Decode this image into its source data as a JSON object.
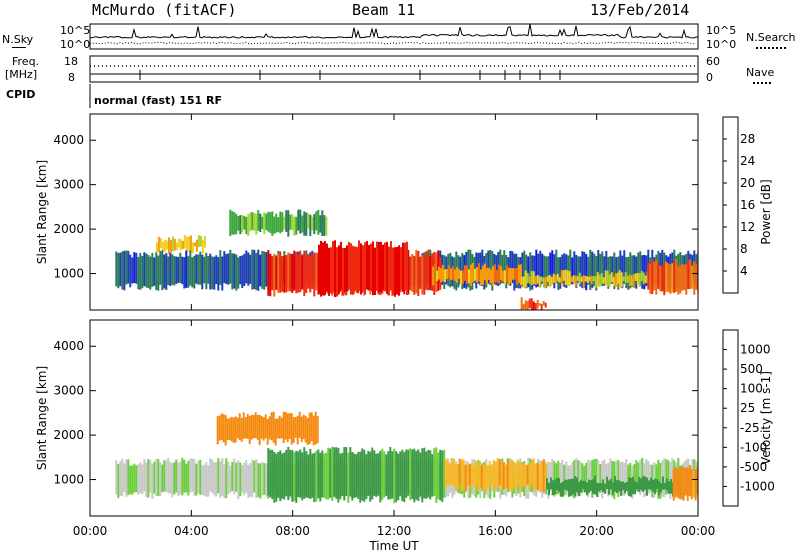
{
  "header": {
    "station": "McMurdo (fitACF)",
    "beam": "Beam 11",
    "date": "13/Feb/2014"
  },
  "strip": {
    "nsky_label": "N.Sky",
    "nsearch_label": "N.Search",
    "noise_top_left": "10^5",
    "noise_bottom_left": "10^0",
    "noise_top_right": "10^5",
    "noise_bottom_right": "10^0",
    "freq_label": "Freq.",
    "freq_unit": "[MHz]",
    "freq_top": "18",
    "freq_bottom": "8",
    "nave_top": "60",
    "nave_bottom": "0",
    "nave_label": "Nave",
    "cpid_label": "CPID",
    "cpid_value": "normal (fast) 151 RF"
  },
  "colors": {
    "power_scale": [
      "#1616f0",
      "#1e3fb4",
      "#2a7a5a",
      "#3ca83c",
      "#a6d430",
      "#f0d020",
      "#f59a0c",
      "#f06a10",
      "#f02a10",
      "#e80000"
    ],
    "velocity_scale": [
      "#e80000",
      "#f25000",
      "#f58a10",
      "#f8b828",
      "#c8c8c8",
      "#c8c8c8",
      "#6ccf3c",
      "#3c9a46",
      "#2a6f7a",
      "#1e3fb4"
    ]
  },
  "chart_data": [
    {
      "type": "heatmap",
      "title": "Power",
      "xlabel": "Time UT",
      "ylabel": "Slant Range [km]",
      "colorbar_label": "Power [dB]",
      "x_ticks": [
        "00:00",
        "04:00",
        "08:00",
        "12:00",
        "16:00",
        "20:00",
        "00:00"
      ],
      "y_ticks": [
        "1000",
        "2000",
        "3000",
        "4000"
      ],
      "colorbar_ticks": [
        "4",
        "8",
        "12",
        "16",
        "20",
        "24",
        "28"
      ],
      "xlim": [
        0,
        24
      ],
      "ylim": [
        180,
        4590
      ],
      "clim": [
        0,
        32
      ],
      "bands": [
        {
          "t0": 5.5,
          "t1": 9.3,
          "r0": 1920,
          "r1": 2350,
          "value": 11
        },
        {
          "t0": 2.6,
          "t1": 4.5,
          "r0": 1530,
          "r1": 1780,
          "value": 18
        },
        {
          "t0": 1.0,
          "t1": 24.0,
          "r0": 700,
          "r1": 1450,
          "value": 6
        },
        {
          "t0": 7.0,
          "t1": 13.8,
          "r0": 570,
          "r1": 1450,
          "value": 27
        },
        {
          "t0": 9.0,
          "t1": 12.5,
          "r0": 560,
          "r1": 1660,
          "value": 29
        },
        {
          "t0": 13.5,
          "t1": 17.0,
          "r0": 800,
          "r1": 1150,
          "value": 21
        },
        {
          "t0": 17.0,
          "t1": 22.0,
          "r0": 750,
          "r1": 1000,
          "value": 17
        },
        {
          "t0": 22.0,
          "t1": 24.0,
          "r0": 600,
          "r1": 1250,
          "value": 24
        },
        {
          "t0": 17.0,
          "t1": 18.0,
          "r0": 200,
          "r1": 380,
          "value": 27
        }
      ]
    },
    {
      "type": "heatmap",
      "title": "Velocity",
      "xlabel": "Time UT",
      "ylabel": "Slant Range [km]",
      "colorbar_label": "Velocity [m s-1]",
      "x_ticks": [
        "00:00",
        "04:00",
        "08:00",
        "12:00",
        "16:00",
        "20:00",
        "00:00"
      ],
      "y_ticks": [
        "1000",
        "2000",
        "3000",
        "4000"
      ],
      "colorbar_ticks": [
        "-1000",
        "-500",
        "-100",
        "-25",
        "25",
        "100",
        "500",
        "1000"
      ],
      "xlim": [
        0,
        24
      ],
      "ylim": [
        180,
        4590
      ],
      "bands": [
        {
          "t0": 5.0,
          "t1": 9.0,
          "r0": 1850,
          "r1": 2450,
          "value": -200
        },
        {
          "t0": 1.0,
          "t1": 24.0,
          "r0": 650,
          "r1": 1400,
          "value": 20
        },
        {
          "t0": 7.0,
          "t1": 14.0,
          "r0": 550,
          "r1": 1650,
          "value": 150
        },
        {
          "t0": 14.0,
          "t1": 18.0,
          "r0": 800,
          "r1": 1400,
          "value": -80
        },
        {
          "t0": 18.0,
          "t1": 23.0,
          "r0": 700,
          "r1": 1000,
          "value": 300
        },
        {
          "t0": 23.0,
          "t1": 24.0,
          "r0": 600,
          "r1": 1250,
          "value": -150
        }
      ]
    }
  ]
}
